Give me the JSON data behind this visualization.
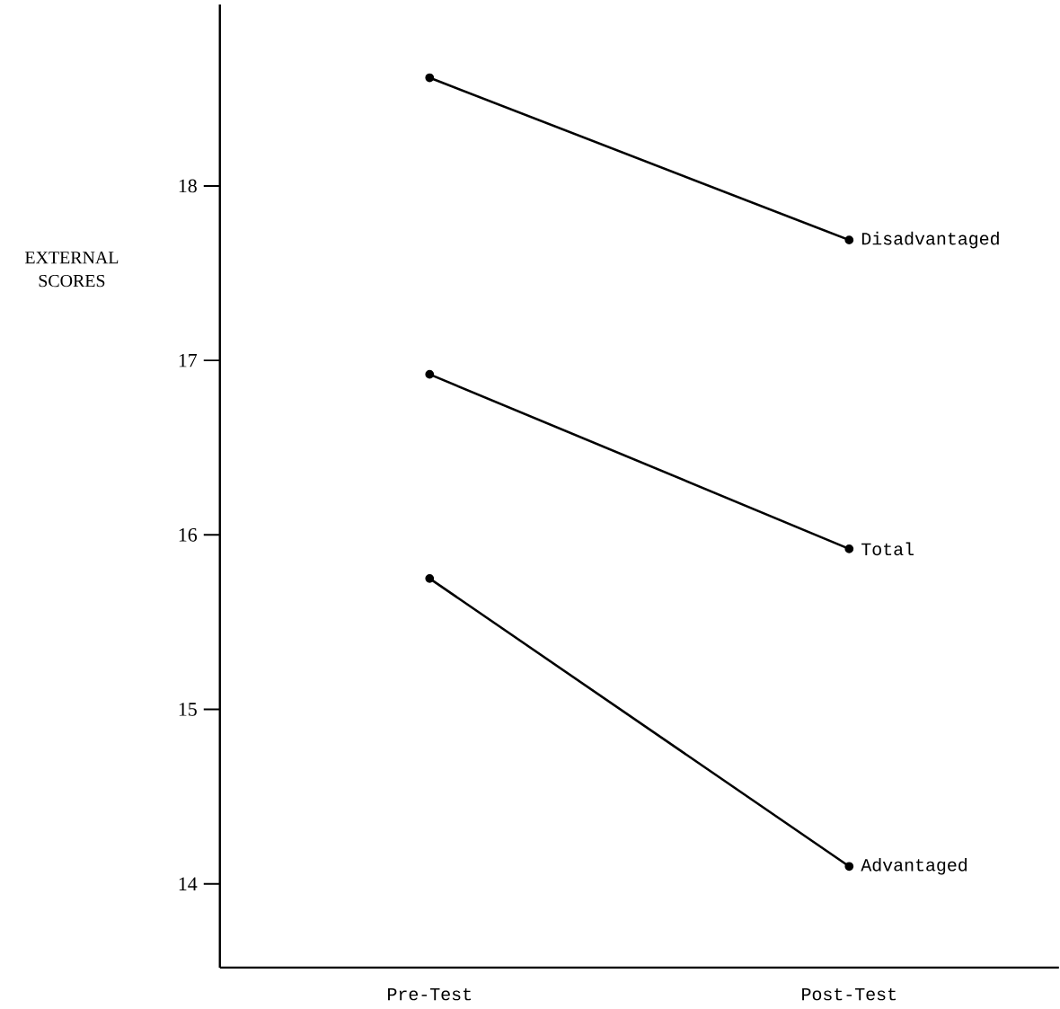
{
  "chart_data": {
    "type": "line",
    "ylabel": "EXTERNAL SCORES",
    "categories": [
      "Pre-Test",
      "Post-Test"
    ],
    "series": [
      {
        "name": "Disadvantaged",
        "color": "#000000",
        "values": [
          18.62,
          17.69
        ]
      },
      {
        "name": "Total",
        "color": "#000000",
        "values": [
          16.92,
          15.92
        ]
      },
      {
        "name": "Advantaged",
        "color": "#000000",
        "values": [
          15.75,
          14.1
        ]
      }
    ],
    "ylim": [
      13.52,
      19.04
    ],
    "yticks": [
      14,
      15,
      16,
      17,
      18
    ],
    "marker": "circle",
    "line_style": "solid",
    "grid": false
  }
}
